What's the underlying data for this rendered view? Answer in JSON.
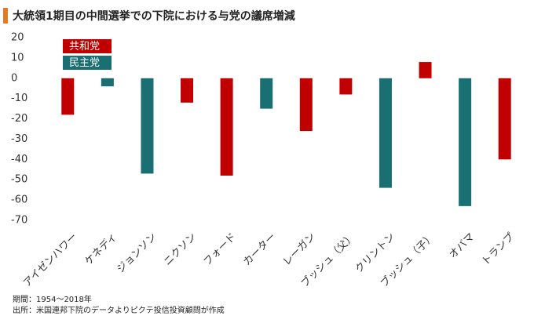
{
  "chart_data": {
    "type": "bar",
    "title": "大統領1期目の中間選挙での下院における与党の議席増減",
    "categories": [
      "アイゼンハワー",
      "ケネディ",
      "ジョンソン",
      "ニクソン",
      "フォード",
      "カーター",
      "レーガン",
      "ブッシュ（父）",
      "クリントン",
      "ブッシュ（子）",
      "オバマ",
      "トランプ"
    ],
    "series": [
      {
        "name": "共和党",
        "color": "#c00000",
        "values": [
          -18,
          null,
          null,
          -12,
          -48,
          null,
          -26,
          -8,
          null,
          8,
          null,
          -40
        ]
      },
      {
        "name": "民主党",
        "color": "#1a6f73",
        "values": [
          null,
          -4,
          -47,
          null,
          null,
          -15,
          null,
          null,
          -54,
          null,
          -63,
          null
        ]
      }
    ],
    "ylim": [
      -70,
      20
    ],
    "yticks": [
      20,
      10,
      0,
      -10,
      -20,
      -30,
      -40,
      -50,
      -60,
      -70
    ],
    "grid": false,
    "notes": [
      "期間：1954～2018年",
      "出所：米国連邦下院のデータよりピクテ投信投資顧問が作成"
    ]
  }
}
